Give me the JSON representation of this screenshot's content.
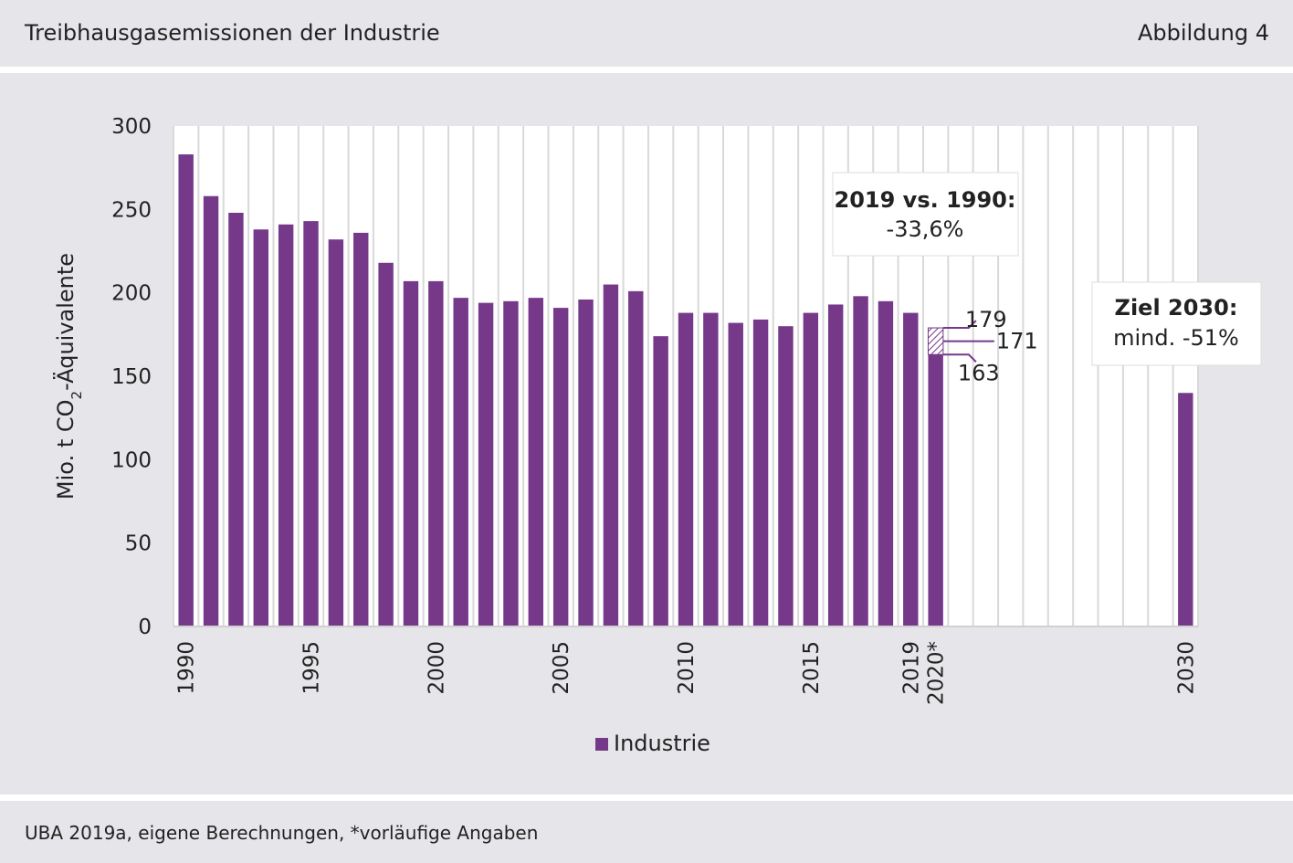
{
  "header": {
    "title": "Treibhausgasemissionen der Industrie",
    "figure_label": "Abbildung 4"
  },
  "footer": {
    "source": "UBA 2019a, eigene Berechnungen, *vorläufige Angaben"
  },
  "chart_data": {
    "type": "bar",
    "ylabel_main": "Mio. t CO",
    "ylabel_sub": "2",
    "ylabel_rest": "-Äquivalente",
    "ylim": [
      0,
      300
    ],
    "yticks": [
      0,
      50,
      100,
      150,
      200,
      250,
      300
    ],
    "xlim": [
      1990,
      2030
    ],
    "xtick_labels": [
      "1990",
      "1995",
      "2000",
      "2005",
      "2010",
      "2015",
      "2019",
      "2020*",
      "2030"
    ],
    "xtick_values": [
      1990,
      1995,
      2000,
      2005,
      2010,
      2015,
      2019,
      2020,
      2030
    ],
    "grid": true,
    "series": [
      {
        "name": "Industrie",
        "color": "#76398a",
        "x": [
          1990,
          1991,
          1992,
          1993,
          1994,
          1995,
          1996,
          1997,
          1998,
          1999,
          2000,
          2001,
          2002,
          2003,
          2004,
          2005,
          2006,
          2007,
          2008,
          2009,
          2010,
          2011,
          2012,
          2013,
          2014,
          2015,
          2016,
          2017,
          2018,
          2019,
          2020,
          2030
        ],
        "values": [
          283,
          258,
          248,
          238,
          241,
          243,
          232,
          236,
          218,
          207,
          207,
          197,
          194,
          195,
          197,
          191,
          196,
          205,
          201,
          174,
          188,
          188,
          182,
          184,
          180,
          188,
          193,
          198,
          195,
          188,
          171,
          140
        ]
      }
    ],
    "range_2020": {
      "x": 2020,
      "low": 163,
      "mid": 171,
      "high": 179,
      "low_label": "163",
      "mid_label": "171",
      "high_label": "179"
    },
    "annotations": [
      {
        "bold": "2019 vs. 1990:",
        "text": "-33,6%"
      },
      {
        "bold": "Ziel 2030:",
        "text": "mind. -51%"
      }
    ],
    "legend": {
      "label": "Industrie",
      "placement": "bottom"
    }
  }
}
